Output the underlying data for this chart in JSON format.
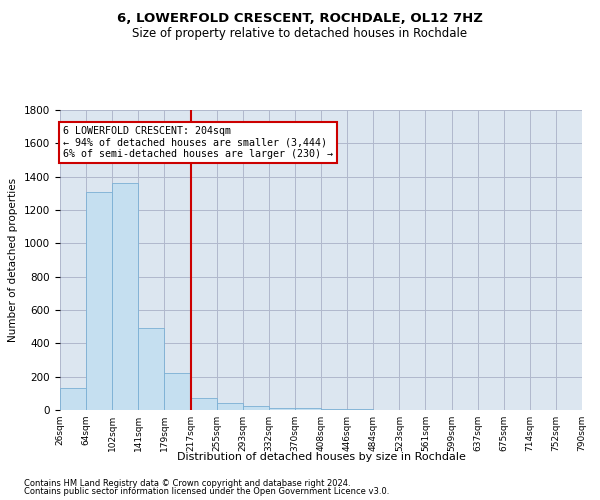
{
  "title": "6, LOWERFOLD CRESCENT, ROCHDALE, OL12 7HZ",
  "subtitle": "Size of property relative to detached houses in Rochdale",
  "xlabel": "Distribution of detached houses by size in Rochdale",
  "ylabel": "Number of detached properties",
  "footnote1": "Contains HM Land Registry data © Crown copyright and database right 2024.",
  "footnote2": "Contains public sector information licensed under the Open Government Licence v3.0.",
  "bar_values": [
    130,
    1310,
    1365,
    490,
    225,
    75,
    45,
    25,
    15,
    15,
    5,
    5,
    0,
    0,
    0,
    0,
    0,
    0,
    0,
    0
  ],
  "bin_labels": [
    "26sqm",
    "64sqm",
    "102sqm",
    "141sqm",
    "179sqm",
    "217sqm",
    "255sqm",
    "293sqm",
    "332sqm",
    "370sqm",
    "408sqm",
    "446sqm",
    "484sqm",
    "523sqm",
    "561sqm",
    "599sqm",
    "637sqm",
    "675sqm",
    "714sqm",
    "752sqm",
    "790sqm"
  ],
  "bar_color": "#c5dff0",
  "bar_edge_color": "#7bafd4",
  "grid_color": "#b0b8cc",
  "bg_color": "#dce6f0",
  "vline_x": 5.0,
  "vline_color": "#cc0000",
  "annotation_text": "6 LOWERFOLD CRESCENT: 204sqm\n← 94% of detached houses are smaller (3,444)\n6% of semi-detached houses are larger (230) →",
  "annotation_box_color": "#cc0000",
  "ylim": [
    0,
    1800
  ],
  "yticks": [
    0,
    200,
    400,
    600,
    800,
    1000,
    1200,
    1400,
    1600,
    1800
  ]
}
